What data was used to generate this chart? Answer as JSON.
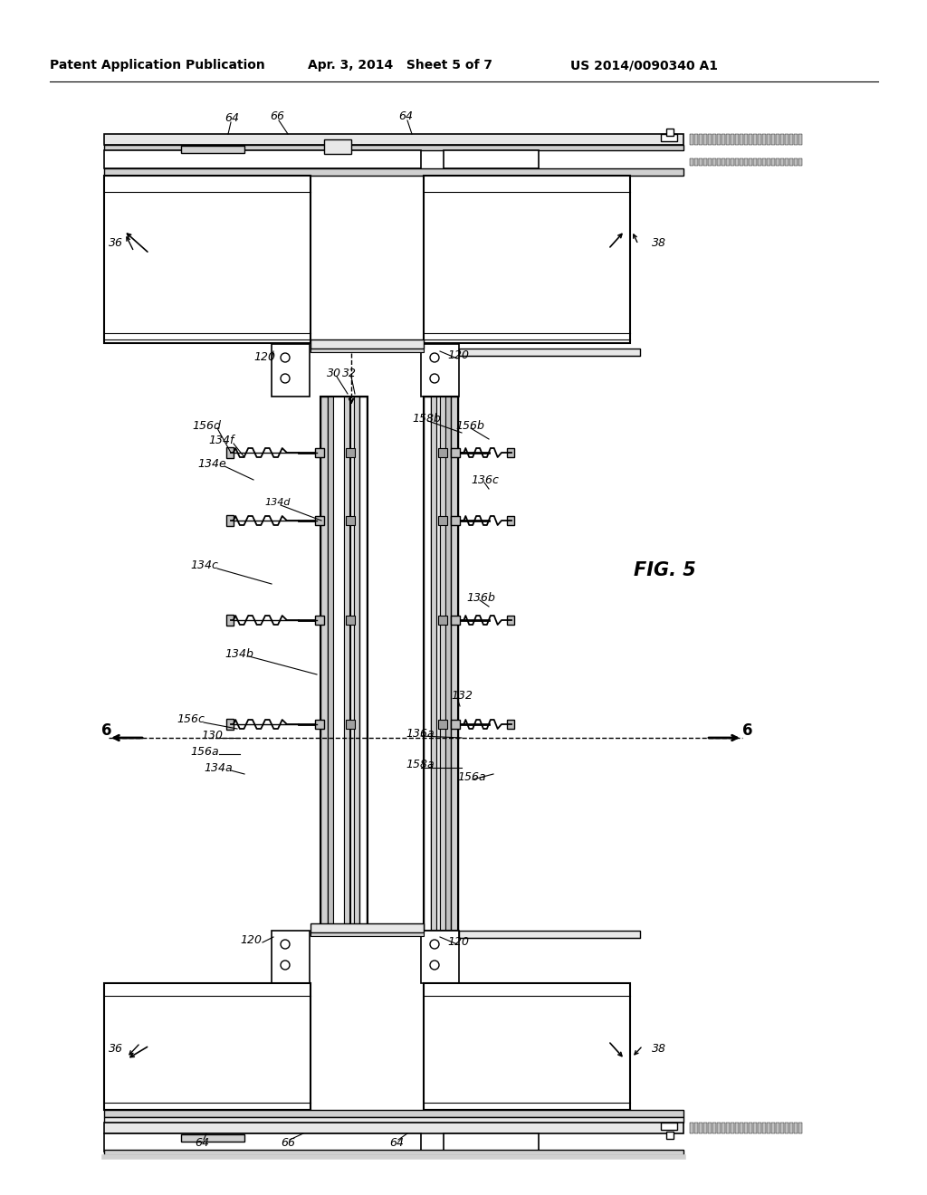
{
  "title_left": "Patent Application Publication",
  "title_mid": "Apr. 3, 2014   Sheet 5 of 7",
  "title_right": "US 2014/0090340 A1",
  "fig_label": "FIG. 5",
  "bg_color": "#ffffff",
  "line_color": "#000000"
}
